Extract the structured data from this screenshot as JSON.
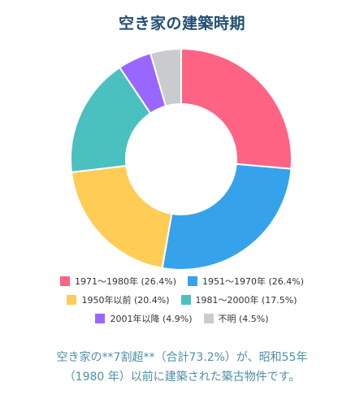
{
  "chart_data": {
    "type": "pie",
    "title": "空き家の建築時期",
    "categories": [
      "1971〜1980年",
      "1951〜1970年",
      "1950年以前",
      "1981〜2000年",
      "2001年以降",
      "不明"
    ],
    "values": [
      26.4,
      26.4,
      20.4,
      17.5,
      4.9,
      4.5
    ],
    "legend_labels": [
      "1971〜1980年 (26.4%)",
      "1951〜1970年 (26.4%)",
      "1950年以前 (20.4%)",
      "1981〜2000年 (17.5%)",
      "2001年以降 (4.9%)",
      "不明 (4.5%)"
    ],
    "colors": [
      "#ff6384",
      "#36a2eb",
      "#ffcd56",
      "#4bc0c0",
      "#9966ff",
      "#c9cbcf"
    ],
    "donut": true,
    "legend_position": "bottom"
  },
  "caption": {
    "line1": "空き家の**7割超**（合計73.2%）が、昭和55年",
    "line2": "（1980 年）以前に建築された築古物件です。"
  }
}
